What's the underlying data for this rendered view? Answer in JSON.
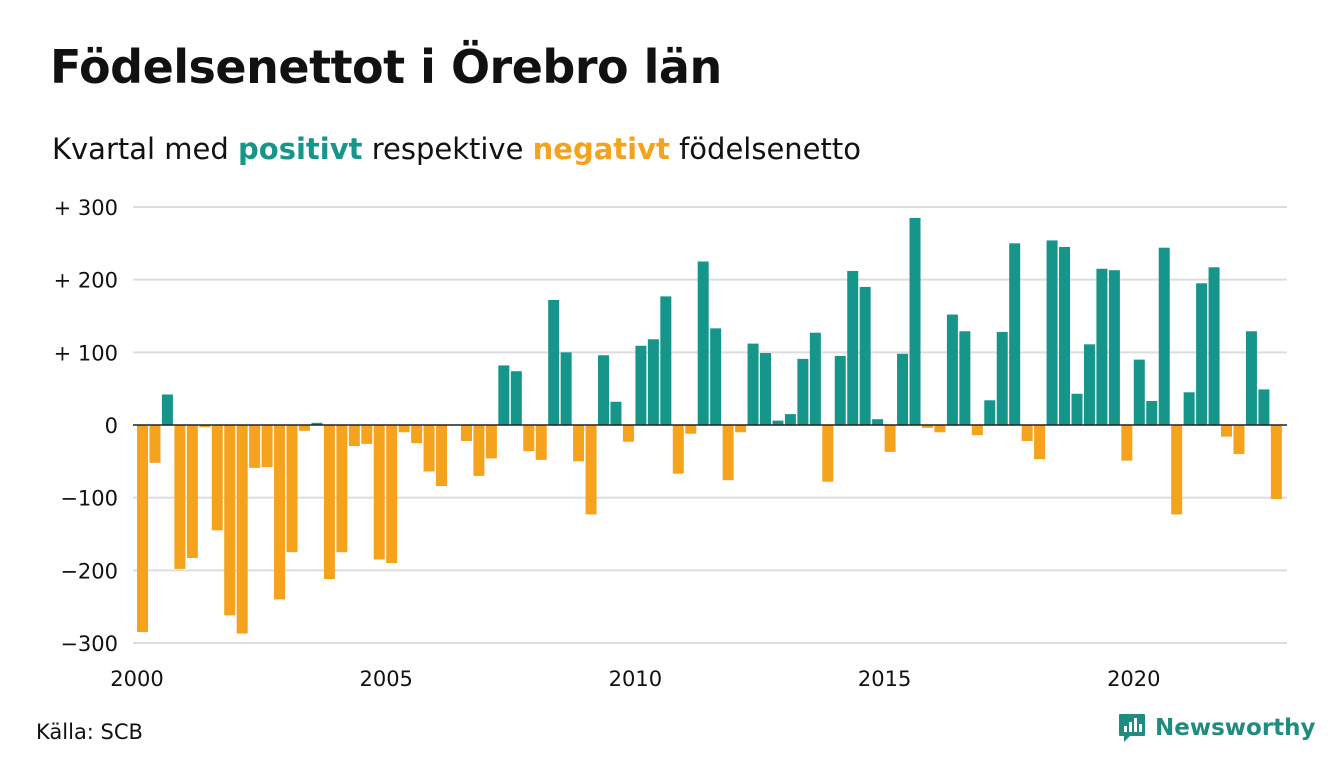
{
  "title": "Födelsenettot i Örebro län",
  "subtitle": {
    "prefix": "Kvartal med",
    "positive": "positivt",
    "middle": "respektive",
    "negative": "negativt",
    "suffix": "födelsenetto"
  },
  "source": "Källa: SCB",
  "brand": "Newsworthy",
  "colors": {
    "positive": "#16968a",
    "negative": "#f5a21c",
    "grid": "#dddddd",
    "brand": "#1f8c7f"
  },
  "chart_data": {
    "type": "bar",
    "title": "Födelsenettot i Örebro län",
    "xlabel": "",
    "ylabel": "",
    "ylim": [
      -300,
      300
    ],
    "y_ticks": [
      300,
      200,
      100,
      0,
      -100,
      -200,
      -300
    ],
    "y_tick_labels": [
      "+ 300",
      "+ 200",
      "+ 100",
      "0",
      "−100",
      "−200",
      "−300"
    ],
    "x_ticks": [
      2000,
      2005,
      2010,
      2015,
      2020
    ],
    "x_tick_labels": [
      "2000",
      "2005",
      "2010",
      "2015",
      "2020"
    ],
    "grid": true,
    "legend": "none",
    "x_start_year": 2000,
    "x_end_year": 2023,
    "periods_per_year": 4,
    "values": [
      -285,
      -52,
      42,
      -198,
      -183,
      -3,
      -145,
      -262,
      -287,
      -59,
      -58,
      -240,
      -175,
      -8,
      3,
      -212,
      -175,
      -29,
      -26,
      -185,
      -190,
      -10,
      -25,
      -64,
      -84,
      0,
      -22,
      -70,
      -46,
      82,
      74,
      -36,
      -48,
      172,
      100,
      -50,
      -123,
      96,
      32,
      -23,
      109,
      118,
      177,
      -67,
      -12,
      225,
      133,
      -76,
      -10,
      112,
      99,
      6,
      15,
      91,
      127,
      -78,
      95,
      212,
      190,
      8,
      -37,
      98,
      285,
      -4,
      -10,
      152,
      129,
      -14,
      34,
      128,
      250,
      -22,
      -47,
      254,
      245,
      43,
      111,
      215,
      213,
      -49,
      90,
      33,
      244,
      -123,
      45,
      195,
      217,
      -16,
      -40,
      129,
      49,
      -102
    ]
  }
}
